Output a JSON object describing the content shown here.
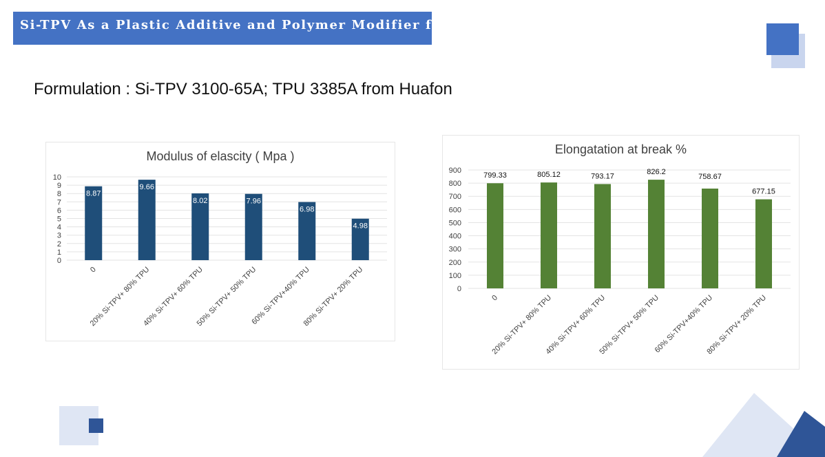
{
  "slide": {
    "title": "Si-TPV As a Plastic Additive and Polymer Modifier for TPU",
    "formulation": "Formulation : Si-TPV 3100-65A; TPU 3385A from Huafon"
  },
  "colors": {
    "banner": "#4472c4",
    "bar_left": "#1f4e79",
    "bar_right": "#548235",
    "accent_light": "#c9d5ee",
    "accent_dark": "#2f5597"
  },
  "chart_data": [
    {
      "type": "bar",
      "title": "Modulus of elascity ( Mpa )",
      "categories": [
        "0",
        "20% Si-TPV+ 80% TPU",
        "40% Si-TPV+ 60% TPU",
        "50% Si-TPV+ 50% TPU",
        "60% Si-TPV+40% TPU",
        "80% Si-TPV+ 20% TPU"
      ],
      "values": [
        8.87,
        9.66,
        8.02,
        7.96,
        6.98,
        4.98
      ],
      "ylim": [
        0,
        10
      ],
      "yticks": [
        0,
        1,
        2,
        3,
        4,
        5,
        6,
        7,
        8,
        9,
        10
      ],
      "grid": true,
      "label_position": "inside-top",
      "color": "#1f4e79"
    },
    {
      "type": "bar",
      "title": "Elongatation at break %",
      "categories": [
        "0",
        "20% Si-TPV+ 80% TPU",
        "40% Si-TPV+ 60% TPU",
        "50% Si-TPV+ 50% TPU",
        "60% Si-TPV+40% TPU",
        "80% Si-TPV+ 20% TPU"
      ],
      "values": [
        799.33,
        805.12,
        793.17,
        826.2,
        758.67,
        677.15
      ],
      "ylim": [
        0,
        900
      ],
      "yticks": [
        0,
        100,
        200,
        300,
        400,
        500,
        600,
        700,
        800,
        900
      ],
      "grid": true,
      "label_position": "above",
      "color": "#548235"
    }
  ]
}
